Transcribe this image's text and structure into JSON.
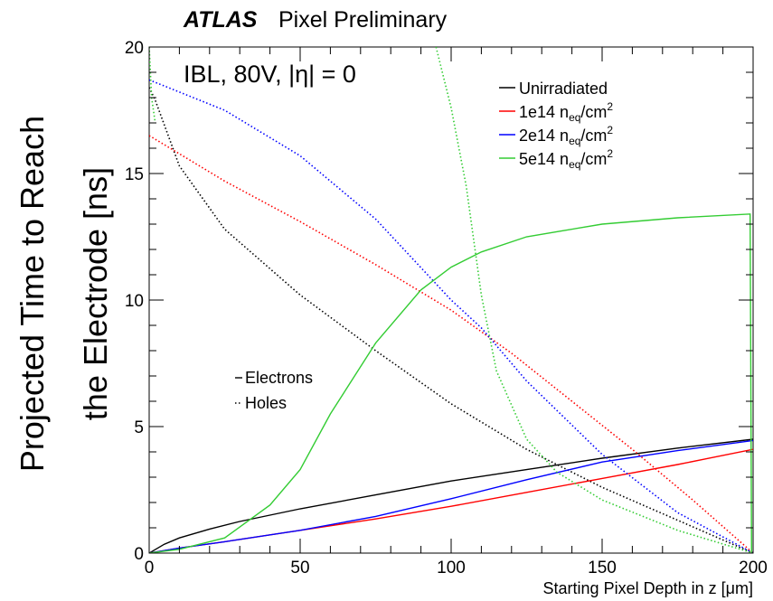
{
  "title": {
    "bold": "ATLAS",
    "rest": "Pixel Preliminary"
  },
  "condition_label": "IBL, 80V, |η| = 0",
  "colors": {
    "unirradiated": "#000000",
    "fluence_1e14": "#ff0000",
    "fluence_2e14": "#0000ff",
    "fluence_5e14": "#33cc33"
  },
  "chart_data": {
    "type": "line",
    "xlabel": "Starting Pixel Depth in z [μm]",
    "ylabel_line1": "Projected Time to Reach",
    "ylabel_line2": "the Electrode [ns]",
    "xlim": [
      0,
      200
    ],
    "ylim": [
      0,
      20
    ],
    "xticks": [
      "0",
      "50",
      "100",
      "150",
      "200"
    ],
    "yticks": [
      "0",
      "5",
      "10",
      "15",
      "20"
    ],
    "grid": false,
    "legend_position": "top-right",
    "legend": [
      {
        "label": "Unirradiated",
        "color": "#000000"
      },
      {
        "label": "1e14 n",
        "sub": "eq",
        "unit": "/cm",
        "sup": "2",
        "color": "#ff0000"
      },
      {
        "label": "2e14 n",
        "sub": "eq",
        "unit": "/cm",
        "sup": "2",
        "color": "#0000ff"
      },
      {
        "label": "5e14 n",
        "sub": "eq",
        "unit": "/cm",
        "sup": "2",
        "color": "#33cc33"
      }
    ],
    "style_legend": [
      {
        "label": "Electrons",
        "style": "solid"
      },
      {
        "label": "Holes",
        "style": "dotted"
      }
    ],
    "series": [
      {
        "color": "#000000",
        "carrier": "electrons",
        "x": [
          0,
          5,
          10,
          20,
          30,
          50,
          75,
          100,
          125,
          150,
          175,
          200
        ],
        "y": [
          0,
          0.35,
          0.6,
          0.95,
          1.25,
          1.75,
          2.3,
          2.85,
          3.3,
          3.75,
          4.15,
          4.5
        ]
      },
      {
        "color": "#000000",
        "carrier": "holes",
        "x": [
          0,
          2,
          10,
          25,
          50,
          75,
          100,
          125,
          150,
          175,
          200
        ],
        "y": [
          18.4,
          17.9,
          15.3,
          12.8,
          10.2,
          8.0,
          5.9,
          4.1,
          2.6,
          1.3,
          0
        ]
      },
      {
        "color": "#ff0000",
        "carrier": "electrons",
        "x": [
          0,
          10,
          25,
          50,
          75,
          100,
          125,
          150,
          175,
          200
        ],
        "y": [
          0,
          0.2,
          0.45,
          0.9,
          1.35,
          1.85,
          2.4,
          2.95,
          3.5,
          4.1
        ]
      },
      {
        "color": "#ff0000",
        "carrier": "holes",
        "x": [
          0,
          25,
          50,
          75,
          100,
          120,
          140,
          160,
          180,
          200
        ],
        "y": [
          16.5,
          14.7,
          13.1,
          11.4,
          9.6,
          7.9,
          6.0,
          4.1,
          2.1,
          0
        ]
      },
      {
        "color": "#0000ff",
        "carrier": "electrons",
        "x": [
          0,
          10,
          25,
          50,
          75,
          100,
          125,
          150,
          175,
          200
        ],
        "y": [
          0,
          0.2,
          0.45,
          0.9,
          1.45,
          2.15,
          2.9,
          3.6,
          4.05,
          4.45
        ]
      },
      {
        "color": "#0000ff",
        "carrier": "holes",
        "x": [
          0,
          25,
          50,
          75,
          100,
          110,
          125,
          150,
          175,
          200
        ],
        "y": [
          18.7,
          17.5,
          15.7,
          13.2,
          10.0,
          8.9,
          6.8,
          3.9,
          1.6,
          0
        ]
      },
      {
        "color": "#33cc33",
        "carrier": "electrons",
        "x": [
          0,
          10,
          25,
          40,
          50,
          60,
          75,
          90,
          100,
          110,
          125,
          150,
          175,
          199,
          199.5
        ],
        "y": [
          0,
          0.15,
          0.6,
          1.9,
          3.3,
          5.5,
          8.3,
          10.4,
          11.3,
          11.9,
          12.5,
          13.0,
          13.25,
          13.4,
          0
        ]
      },
      {
        "color": "#33cc33",
        "carrier": "holes",
        "x": [
          95,
          100,
          105,
          110,
          115,
          125,
          135,
          150,
          175,
          200
        ],
        "y": [
          20,
          17.6,
          14.5,
          10.2,
          7.2,
          4.5,
          3.2,
          2.1,
          0.9,
          0
        ]
      },
      {
        "color": "#33cc33",
        "carrier": "holes",
        "x": [
          0,
          0.8,
          2
        ],
        "y": [
          20,
          18,
          17
        ]
      }
    ]
  }
}
